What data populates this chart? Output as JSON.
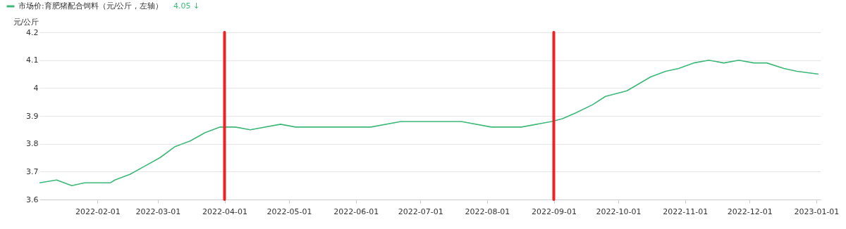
{
  "chart_data": {
    "type": "line",
    "ylabel": "元/公斤",
    "x": [
      "2022-01-05",
      "2022-01-13",
      "2022-01-20",
      "2022-01-26",
      "2022-02-07",
      "2022-02-09",
      "2022-02-16",
      "2022-02-23",
      "2022-03-02",
      "2022-03-09",
      "2022-03-16",
      "2022-03-23",
      "2022-03-30",
      "2022-04-06",
      "2022-04-13",
      "2022-04-27",
      "2022-05-04",
      "2022-06-08",
      "2022-06-22",
      "2022-07-20",
      "2022-08-03",
      "2022-08-17",
      "2022-08-31",
      "2022-09-05",
      "2022-09-11",
      "2022-09-19",
      "2022-09-25",
      "2022-10-05",
      "2022-10-16",
      "2022-10-23",
      "2022-10-29",
      "2022-11-05",
      "2022-11-12",
      "2022-11-19",
      "2022-11-26",
      "2022-12-03",
      "2022-12-09",
      "2022-12-17",
      "2022-12-23",
      "2023-01-02"
    ],
    "series": [
      {
        "name": "市场价:育肥猪配合饲料（元/公斤，左轴）",
        "color": "#3cb878",
        "values": [
          3.66,
          3.67,
          3.65,
          3.66,
          3.66,
          3.67,
          3.69,
          3.72,
          3.75,
          3.79,
          3.81,
          3.84,
          3.86,
          3.86,
          3.85,
          3.87,
          3.86,
          3.86,
          3.88,
          3.88,
          3.86,
          3.86,
          3.88,
          3.89,
          3.91,
          3.94,
          3.97,
          3.99,
          4.04,
          4.06,
          4.07,
          4.09,
          4.1,
          4.09,
          4.1,
          4.09,
          4.09,
          4.07,
          4.06,
          4.05
        ]
      }
    ],
    "annotations": [
      "4.05 ↓"
    ],
    "ylim": [
      3.6,
      4.2
    ],
    "yticks": [
      3.6,
      3.7,
      3.8,
      3.9,
      {
        "value": 4.0,
        "label": "4"
      },
      4.1,
      4.2
    ],
    "xlim": [
      "2022-01-05",
      "2023-01-03"
    ],
    "xticks": [
      "2022-02-01",
      "2022-03-01",
      "2022-04-01",
      "2022-05-01",
      "2022-06-01",
      "2022-07-01",
      "2022-08-01",
      "2022-09-01",
      "2022-10-01",
      "2022-11-01",
      "2022-12-01",
      "2023-01-01"
    ],
    "ref_lines": [
      {
        "axis": "x",
        "value": "2022-04-01",
        "label": null,
        "color": "#ee2222"
      },
      {
        "axis": "x",
        "value": "2022-09-01",
        "label": null,
        "color": "#ee2222"
      }
    ],
    "grid": "y",
    "legend": "top left",
    "marker": "none",
    "line_style": "solid"
  }
}
